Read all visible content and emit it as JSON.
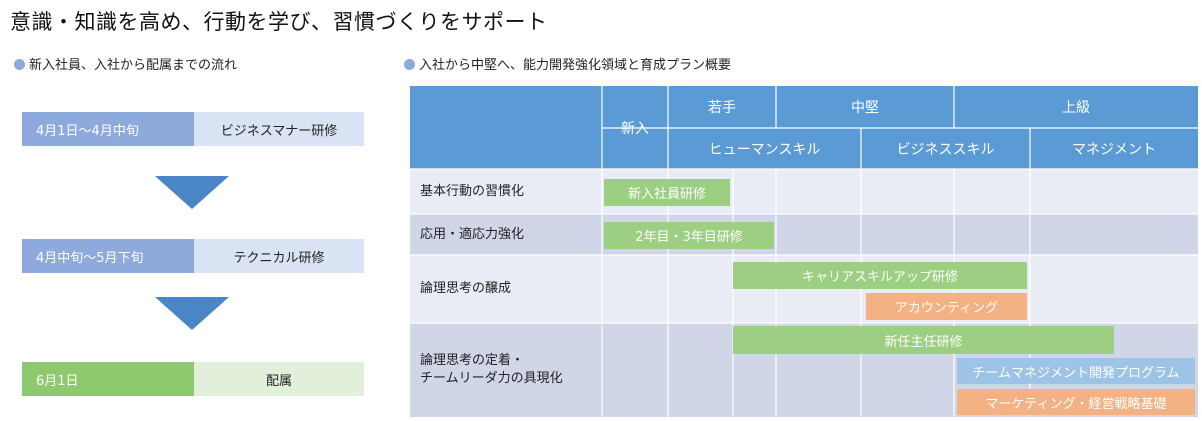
{
  "title": "意識・知識を高め、行動を学び、習慣づくりをサポート",
  "colors": {
    "header": "#5b9bd5",
    "green": "#9dcf83",
    "orange": "#f4b183",
    "lightblue": "#9dc3e6",
    "dot": "#8ea9db"
  },
  "left": {
    "heading": "新入社員、入社から配属までの流れ",
    "steps": [
      {
        "period": "4月1日～4月中旬",
        "name": "ビジネスマナー研修"
      },
      {
        "period": "4月中旬～5月下旬",
        "name": "テクニカル研修"
      },
      {
        "period": "6月1日",
        "name": "配属"
      }
    ]
  },
  "right": {
    "heading": "入社から中堅へ、能力開発強化領域と育成プラン概要",
    "header": {
      "newcomer": "新入",
      "junior": "若手",
      "mid": "中堅",
      "senior": "上級",
      "human_skill": "ヒューマンスキル",
      "business_skill": "ビジネススキル",
      "management": "マネジメント"
    },
    "rows": [
      "基本行動の習慣化",
      "応用・適応力強化",
      "論理思考の醸成",
      "論理思考の定着・",
      "チームリーダ力の具現化"
    ],
    "programs": [
      "新入社員研修",
      "2年目・3年目研修",
      "キャリアスキルアップ研修",
      "アカウンティング",
      "新任主任研修",
      "チームマネジメント開発プログラム",
      "マーケティング・経営戦略基礎"
    ]
  }
}
